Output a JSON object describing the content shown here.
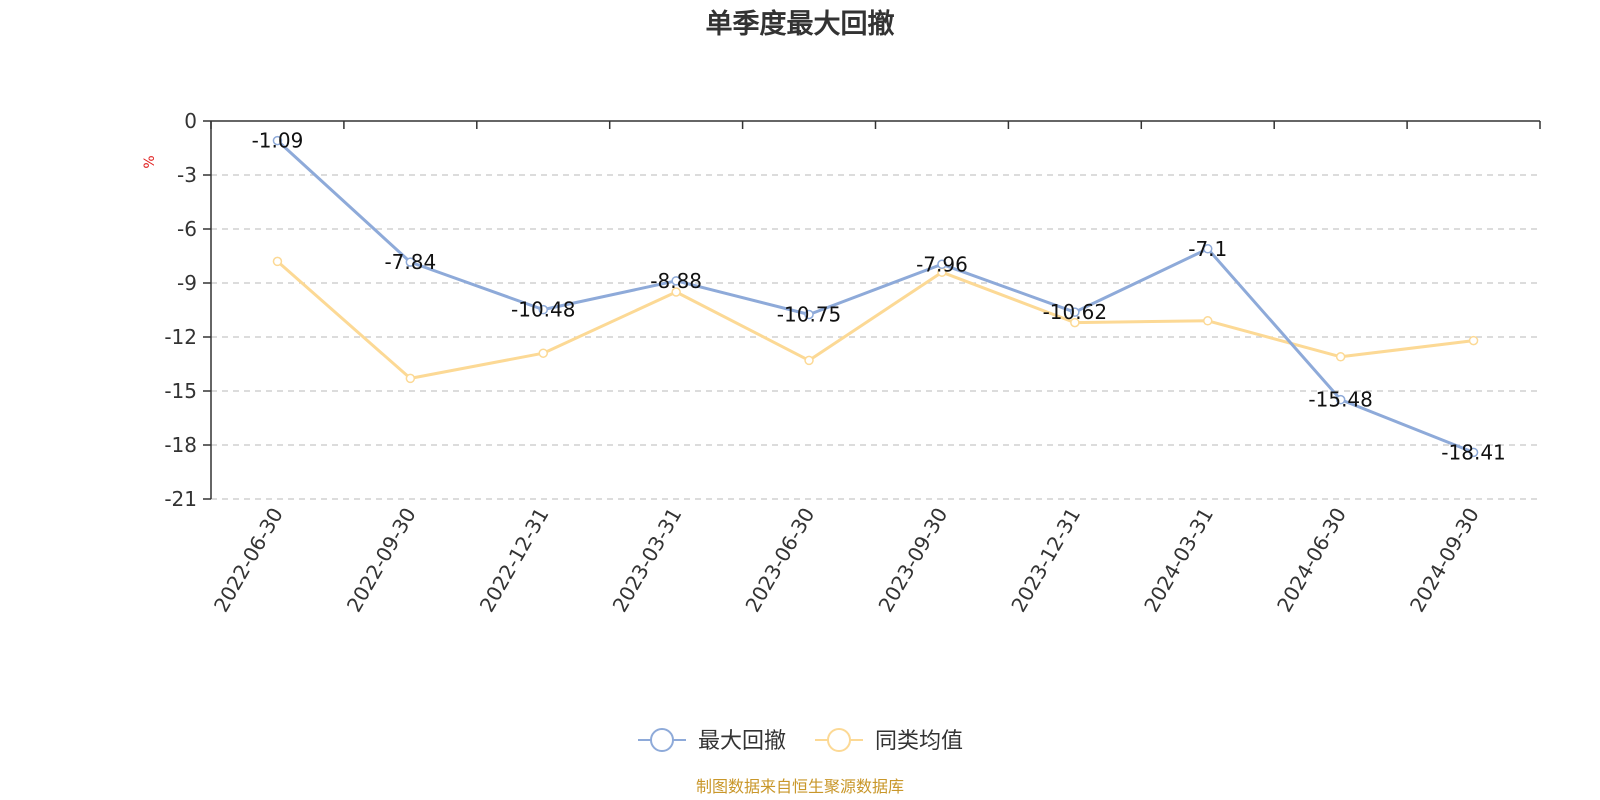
{
  "chart_data": {
    "type": "line",
    "title": "单季度最大回撤",
    "ylabel": "%",
    "xlabel": "",
    "ylim": [
      -21,
      0
    ],
    "yticks": [
      0,
      -3,
      -6,
      -9,
      -12,
      -15,
      -18,
      -21
    ],
    "ytick_labels": [
      "0",
      "-3",
      "-6",
      "-9",
      "-12",
      "-15",
      "-18",
      "-21"
    ],
    "grid": true,
    "legend_position": "bottom-center",
    "categories": [
      "2022-06-30",
      "2022-09-30",
      "2022-12-31",
      "2023-03-31",
      "2023-06-30",
      "2023-09-30",
      "2023-12-31",
      "2024-03-31",
      "2024-06-30",
      "2024-09-30"
    ],
    "series": [
      {
        "name": "最大回撤",
        "color": "#8eaad9",
        "values": [
          -1.09,
          -7.84,
          -10.48,
          -8.88,
          -10.75,
          -7.96,
          -10.62,
          -7.1,
          -15.48,
          -18.41
        ],
        "data_labels": [
          "-1.09",
          "-7.84",
          "-10.48",
          "-8.88",
          "-10.75",
          "-7.96",
          "-10.62",
          "-7.1",
          "-15.48",
          "-18.41"
        ]
      },
      {
        "name": "同类均值",
        "color": "#fcd995",
        "values": [
          -7.8,
          -14.3,
          -12.9,
          -9.5,
          -13.3,
          -8.4,
          -11.2,
          -11.1,
          -13.1,
          -12.2
        ]
      }
    ],
    "source": "制图数据来自恒生聚源数据库",
    "source_color": "#c9972a",
    "unit_color": "#e02020"
  }
}
